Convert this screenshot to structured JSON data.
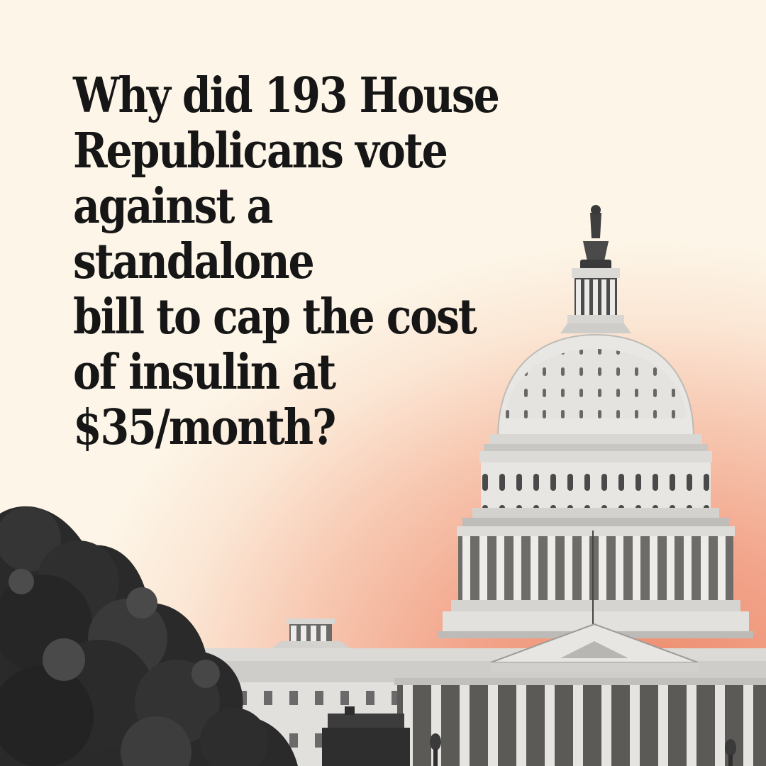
{
  "headline": "Why did 193 House\nRepublicans vote\nagainst a standalone\nbill to cap the cost\nof insulin at\n$35/month?",
  "colors": {
    "background_light": "#fdf6e8",
    "background_accent": "#ec8a6c",
    "text": "#161616"
  },
  "illustration": {
    "subject": "capitol-dome-icon",
    "foreground": "tree-icon"
  }
}
